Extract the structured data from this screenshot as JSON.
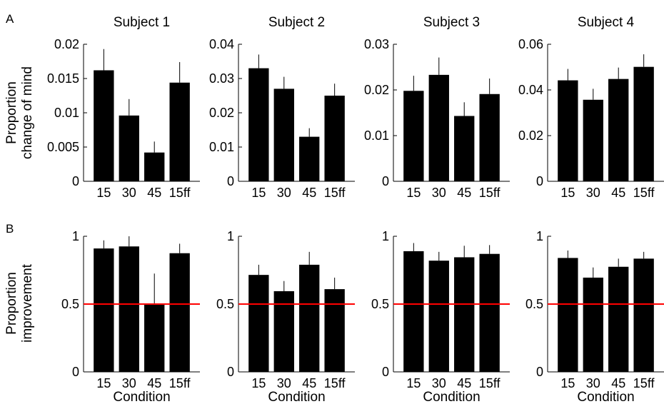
{
  "panel_labels": [
    "A",
    "B"
  ],
  "row_a_ylabel": [
    "Proportion",
    "change of mind"
  ],
  "row_b_ylabel": [
    "Proportion",
    "improvement"
  ],
  "xlabel": "Condition",
  "reference_line": {
    "y": 0.5,
    "color": "#ff0000"
  },
  "bar_color": "#000000",
  "chart_data": [
    {
      "type": "bar",
      "row": "A",
      "title": "Subject 1",
      "categories": [
        "15",
        "30",
        "45",
        "15ff"
      ],
      "values": [
        0.0162,
        0.0096,
        0.0042,
        0.0144
      ],
      "errors": [
        0.0031,
        0.0024,
        0.0016,
        0.003
      ],
      "ylim": [
        0,
        0.02
      ],
      "yticks": [
        "0",
        "0.005",
        "0.01",
        "0.015",
        "0.02"
      ],
      "ytick_values": [
        0,
        0.005,
        0.01,
        0.015,
        0.02
      ]
    },
    {
      "type": "bar",
      "row": "A",
      "title": "Subject 2",
      "categories": [
        "15",
        "30",
        "45",
        "15ff"
      ],
      "values": [
        0.033,
        0.027,
        0.013,
        0.025
      ],
      "errors": [
        0.004,
        0.0035,
        0.0025,
        0.0035
      ],
      "ylim": [
        0,
        0.04
      ],
      "yticks": [
        "0",
        "0.01",
        "0.02",
        "0.03",
        "0.04"
      ],
      "ytick_values": [
        0,
        0.01,
        0.02,
        0.03,
        0.04
      ]
    },
    {
      "type": "bar",
      "row": "A",
      "title": "Subject 3",
      "categories": [
        "15",
        "30",
        "45",
        "15ff"
      ],
      "values": [
        0.0198,
        0.0233,
        0.0143,
        0.0191
      ],
      "errors": [
        0.0033,
        0.0038,
        0.003,
        0.0034
      ],
      "ylim": [
        0,
        0.03
      ],
      "yticks": [
        "0",
        "0.01",
        "0.02",
        "0.03"
      ],
      "ytick_values": [
        0,
        0.01,
        0.02,
        0.03
      ]
    },
    {
      "type": "bar",
      "row": "A",
      "title": "Subject 4",
      "categories": [
        "15",
        "30",
        "45",
        "15ff"
      ],
      "values": [
        0.0442,
        0.0357,
        0.0448,
        0.0501
      ],
      "errors": [
        0.005,
        0.0048,
        0.005,
        0.0055
      ],
      "ylim": [
        0,
        0.06
      ],
      "yticks": [
        "0",
        "0.02",
        "0.04",
        "0.06"
      ],
      "ytick_values": [
        0,
        0.02,
        0.04,
        0.06
      ]
    },
    {
      "type": "bar",
      "row": "B",
      "title": "",
      "categories": [
        "15",
        "30",
        "45",
        "15ff"
      ],
      "values": [
        0.91,
        0.925,
        0.5,
        0.875
      ],
      "errors": [
        0.06,
        0.075,
        0.225,
        0.07
      ],
      "ylim": [
        0,
        1
      ],
      "yticks": [
        "0",
        "0.5",
        "1"
      ],
      "ytick_values": [
        0,
        0.5,
        1
      ]
    },
    {
      "type": "bar",
      "row": "B",
      "title": "",
      "categories": [
        "15",
        "30",
        "45",
        "15ff"
      ],
      "values": [
        0.715,
        0.595,
        0.79,
        0.61
      ],
      "errors": [
        0.075,
        0.075,
        0.095,
        0.085
      ],
      "ylim": [
        0,
        1
      ],
      "yticks": [
        "0",
        "0.5",
        "1"
      ],
      "ytick_values": [
        0,
        0.5,
        1
      ]
    },
    {
      "type": "bar",
      "row": "B",
      "title": "",
      "categories": [
        "15",
        "30",
        "45",
        "15ff"
      ],
      "values": [
        0.89,
        0.82,
        0.845,
        0.87
      ],
      "errors": [
        0.06,
        0.065,
        0.085,
        0.065
      ],
      "ylim": [
        0,
        1
      ],
      "yticks": [
        "0",
        "0.5",
        "1"
      ],
      "ytick_values": [
        0,
        0.5,
        1
      ]
    },
    {
      "type": "bar",
      "row": "B",
      "title": "",
      "categories": [
        "15",
        "30",
        "45",
        "15ff"
      ],
      "values": [
        0.84,
        0.695,
        0.775,
        0.835
      ],
      "errors": [
        0.055,
        0.075,
        0.06,
        0.05
      ],
      "ylim": [
        0,
        1
      ],
      "yticks": [
        "0",
        "0.5",
        "1"
      ],
      "ytick_values": [
        0,
        0.5,
        1
      ]
    }
  ]
}
